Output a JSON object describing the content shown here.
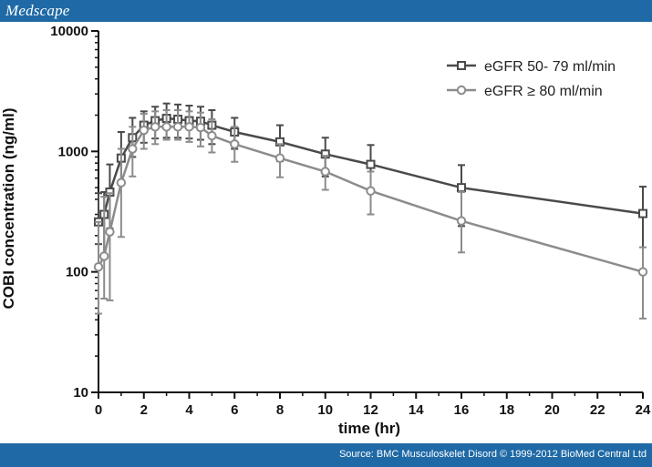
{
  "header": {
    "brand": "Medscape"
  },
  "footer": {
    "source": "Source: BMC Musculoskelet Disord © 1999-2012 BioMed Central Ltd"
  },
  "chart_data": {
    "type": "line",
    "xlabel": "time (hr)",
    "ylabel": "COBI concentration (ng/ml)",
    "xlim": [
      0,
      24
    ],
    "ylim": [
      10,
      10000
    ],
    "yscale": "log",
    "x_ticks": [
      0,
      2,
      4,
      6,
      8,
      10,
      12,
      14,
      16,
      18,
      20,
      22,
      24
    ],
    "y_ticks": [
      10,
      100,
      1000,
      10000
    ],
    "y_tick_labels": [
      "10",
      "100",
      "1000",
      "10000"
    ],
    "grid": false,
    "legend_position": "top-right",
    "series": [
      {
        "name": "eGFR 50- 79 ml/min",
        "color": "#4a4a4a",
        "marker": "square",
        "x": [
          0,
          0.25,
          0.5,
          1,
          1.5,
          2,
          2.5,
          3,
          3.5,
          4,
          4.5,
          5,
          6,
          8,
          10,
          12,
          16,
          24
        ],
        "y": [
          260,
          300,
          460,
          880,
          1300,
          1650,
          1800,
          1880,
          1850,
          1800,
          1780,
          1650,
          1450,
          1200,
          950,
          780,
          500,
          305
        ],
        "err_low": [
          170,
          130,
          230,
          560,
          900,
          1180,
          1280,
          1300,
          1300,
          1280,
          1250,
          1150,
          1050,
          830,
          620,
          470,
          240,
          100
        ],
        "err_high": [
          450,
          460,
          780,
          1450,
          1900,
          2150,
          2350,
          2500,
          2450,
          2400,
          2350,
          2200,
          1900,
          1650,
          1300,
          1130,
          770,
          510
        ]
      },
      {
        "name": "eGFR ≥ 80 ml/min",
        "color": "#8c8c8c",
        "marker": "circle",
        "x": [
          0,
          0.25,
          0.5,
          1,
          1.5,
          2,
          2.5,
          3,
          3.5,
          4,
          4.5,
          5,
          6,
          8,
          10,
          12,
          16,
          24
        ],
        "y": [
          110,
          135,
          215,
          550,
          1050,
          1500,
          1600,
          1600,
          1600,
          1600,
          1580,
          1350,
          1150,
          880,
          680,
          470,
          265,
          100
        ],
        "err_low": [
          45,
          60,
          58,
          195,
          620,
          1050,
          1150,
          1250,
          1250,
          1200,
          1100,
          980,
          820,
          610,
          480,
          300,
          145,
          41
        ],
        "err_high": [
          260,
          420,
          450,
          1050,
          1600,
          2050,
          2150,
          2200,
          2200,
          2150,
          2100,
          1850,
          1600,
          1150,
          920,
          680,
          460,
          160
        ]
      }
    ]
  }
}
